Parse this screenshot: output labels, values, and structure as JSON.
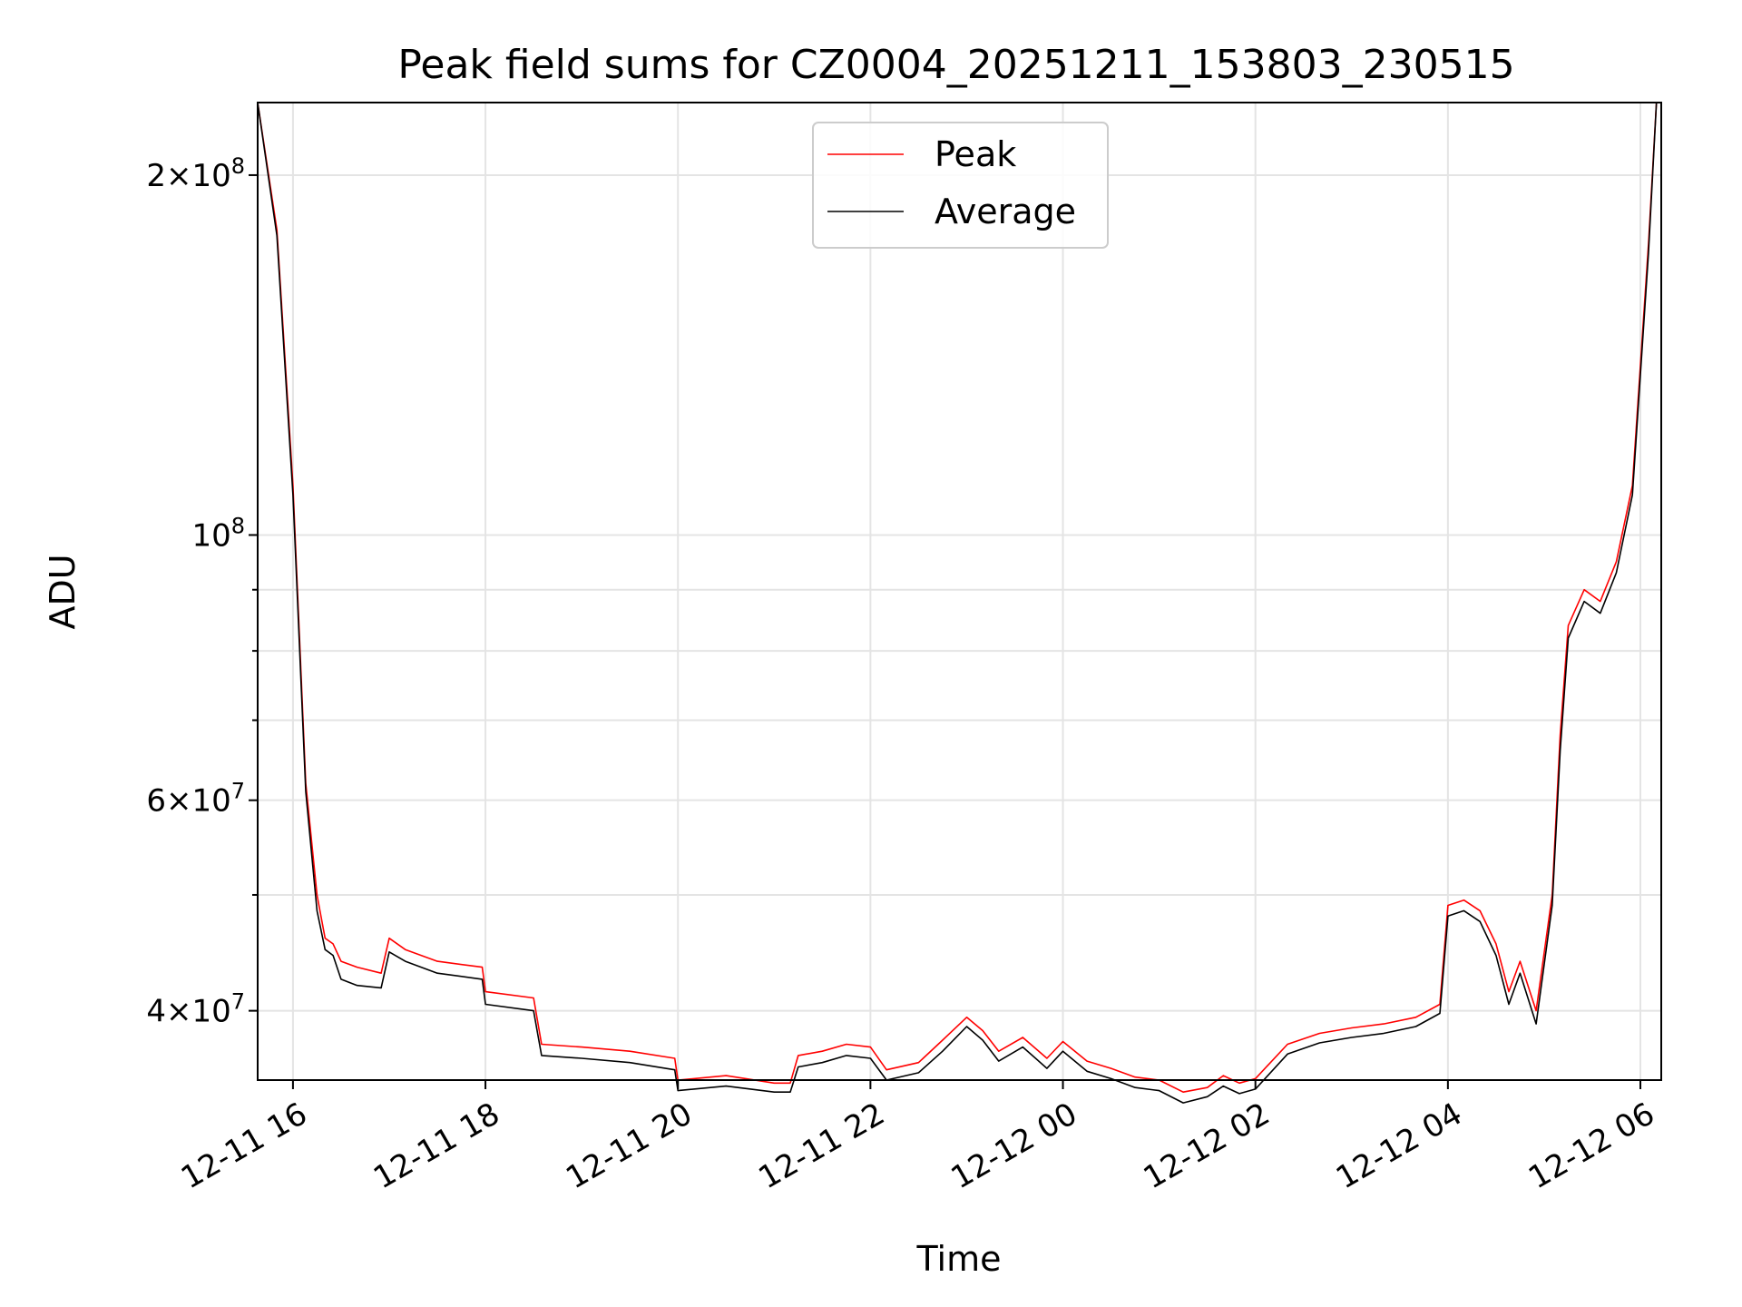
{
  "chart_data": {
    "type": "line",
    "title": "Peak field sums for CZ0004_20251211_153803_230515",
    "xlabel": "Time",
    "ylabel": "ADU",
    "xlim": [
      "2025-12-11T15:38",
      "2025-12-12T06:13"
    ],
    "ylim": [
      35000000,
      230000000
    ],
    "yscale": "log",
    "grid": true,
    "legend_position": "top-center",
    "x_ticks": [
      {
        "value": "2025-12-11T16:00",
        "label": "12-11 16"
      },
      {
        "value": "2025-12-11T18:00",
        "label": "12-11 18"
      },
      {
        "value": "2025-12-11T20:00",
        "label": "12-11 20"
      },
      {
        "value": "2025-12-11T22:00",
        "label": "12-11 22"
      },
      {
        "value": "2025-12-12T00:00",
        "label": "12-12 00"
      },
      {
        "value": "2025-12-12T02:00",
        "label": "12-12 02"
      },
      {
        "value": "2025-12-12T04:00",
        "label": "12-12 04"
      },
      {
        "value": "2025-12-12T06:00",
        "label": "12-12 06"
      }
    ],
    "y_ticks": [
      {
        "value": 200000000,
        "mant": "2",
        "exp": "8"
      },
      {
        "value": 100000000,
        "mant": "",
        "exp": "8"
      },
      {
        "value": 60000000,
        "mant": "6",
        "exp": "7"
      },
      {
        "value": 40000000,
        "mant": "4",
        "exp": "7"
      }
    ],
    "y_minor_ticks": [
      50000000,
      70000000,
      80000000,
      90000000,
      300000000
    ],
    "series": [
      {
        "name": "Peak",
        "color": "#ff0000",
        "x": [
          "2025-12-11T15:38",
          "2025-12-11T15:50",
          "2025-12-11T16:00",
          "2025-12-11T16:08",
          "2025-12-11T16:15",
          "2025-12-11T16:20",
          "2025-12-11T16:25",
          "2025-12-11T16:30",
          "2025-12-11T16:40",
          "2025-12-11T16:55",
          "2025-12-11T17:00",
          "2025-12-11T17:10",
          "2025-12-11T17:30",
          "2025-12-11T17:58",
          "2025-12-11T18:00",
          "2025-12-11T18:30",
          "2025-12-11T18:35",
          "2025-12-11T19:00",
          "2025-12-11T19:30",
          "2025-12-11T19:58",
          "2025-12-11T20:00",
          "2025-12-11T20:30",
          "2025-12-11T21:00",
          "2025-12-11T21:10",
          "2025-12-11T21:15",
          "2025-12-11T21:30",
          "2025-12-11T21:45",
          "2025-12-11T22:00",
          "2025-12-11T22:10",
          "2025-12-11T22:30",
          "2025-12-11T22:45",
          "2025-12-11T23:00",
          "2025-12-11T23:10",
          "2025-12-11T23:20",
          "2025-12-11T23:35",
          "2025-12-11T23:50",
          "2025-12-12T00:00",
          "2025-12-12T00:15",
          "2025-12-12T00:30",
          "2025-12-12T00:45",
          "2025-12-12T01:00",
          "2025-12-12T01:15",
          "2025-12-12T01:30",
          "2025-12-12T01:40",
          "2025-12-12T01:50",
          "2025-12-12T02:00",
          "2025-12-12T02:20",
          "2025-12-12T02:40",
          "2025-12-12T03:00",
          "2025-12-12T03:20",
          "2025-12-12T03:40",
          "2025-12-12T03:55",
          "2025-12-12T04:00",
          "2025-12-12T04:10",
          "2025-12-12T04:20",
          "2025-12-12T04:30",
          "2025-12-12T04:38",
          "2025-12-12T04:45",
          "2025-12-12T04:55",
          "2025-12-12T05:05",
          "2025-12-12T05:10",
          "2025-12-12T05:15",
          "2025-12-12T05:25",
          "2025-12-12T05:35",
          "2025-12-12T05:45",
          "2025-12-12T05:55",
          "2025-12-12T06:05",
          "2025-12-12T06:10"
        ],
        "values": [
          230000000,
          180000000,
          110000000,
          62000000,
          50000000,
          46000000,
          45500000,
          44000000,
          43500000,
          43000000,
          46000000,
          45000000,
          44000000,
          43500000,
          41500000,
          41000000,
          37500000,
          37300000,
          37000000,
          36500000,
          35000000,
          35300000,
          34800000,
          34800000,
          36700000,
          37000000,
          37500000,
          37300000,
          35700000,
          36200000,
          37800000,
          39500000,
          38500000,
          37000000,
          38000000,
          36500000,
          37700000,
          36300000,
          35800000,
          35200000,
          35000000,
          34200000,
          34500000,
          35300000,
          34800000,
          35100000,
          37500000,
          38300000,
          38700000,
          39000000,
          39500000,
          40500000,
          49000000,
          49500000,
          48500000,
          45500000,
          41500000,
          44000000,
          40000000,
          50000000,
          68000000,
          84000000,
          90000000,
          88000000,
          95000000,
          110000000,
          175000000,
          230000000
        ]
      },
      {
        "name": "Average",
        "color": "#000000",
        "x": [
          "2025-12-11T15:38",
          "2025-12-11T15:50",
          "2025-12-11T16:00",
          "2025-12-11T16:08",
          "2025-12-11T16:15",
          "2025-12-11T16:20",
          "2025-12-11T16:25",
          "2025-12-11T16:30",
          "2025-12-11T16:40",
          "2025-12-11T16:55",
          "2025-12-11T17:00",
          "2025-12-11T17:10",
          "2025-12-11T17:30",
          "2025-12-11T17:58",
          "2025-12-11T18:00",
          "2025-12-11T18:30",
          "2025-12-11T18:35",
          "2025-12-11T19:00",
          "2025-12-11T19:30",
          "2025-12-11T19:58",
          "2025-12-11T20:00",
          "2025-12-11T20:30",
          "2025-12-11T21:00",
          "2025-12-11T21:10",
          "2025-12-11T21:15",
          "2025-12-11T21:30",
          "2025-12-11T21:45",
          "2025-12-11T22:00",
          "2025-12-11T22:10",
          "2025-12-11T22:30",
          "2025-12-11T22:45",
          "2025-12-11T23:00",
          "2025-12-11T23:10",
          "2025-12-11T23:20",
          "2025-12-11T23:35",
          "2025-12-11T23:50",
          "2025-12-12T00:00",
          "2025-12-12T00:15",
          "2025-12-12T00:30",
          "2025-12-12T00:45",
          "2025-12-12T01:00",
          "2025-12-12T01:15",
          "2025-12-12T01:30",
          "2025-12-12T01:40",
          "2025-12-12T01:50",
          "2025-12-12T02:00",
          "2025-12-12T02:20",
          "2025-12-12T02:40",
          "2025-12-12T03:00",
          "2025-12-12T03:20",
          "2025-12-12T03:40",
          "2025-12-12T03:55",
          "2025-12-12T04:00",
          "2025-12-12T04:10",
          "2025-12-12T04:20",
          "2025-12-12T04:30",
          "2025-12-12T04:38",
          "2025-12-12T04:45",
          "2025-12-12T04:55",
          "2025-12-12T05:05",
          "2025-12-12T05:10",
          "2025-12-12T05:15",
          "2025-12-12T05:25",
          "2025-12-12T05:35",
          "2025-12-12T05:45",
          "2025-12-12T05:55",
          "2025-12-12T06:05",
          "2025-12-12T06:10"
        ],
        "values": [
          230000000,
          178000000,
          108000000,
          61000000,
          48500000,
          45000000,
          44500000,
          42500000,
          42000000,
          41800000,
          44800000,
          44000000,
          43000000,
          42500000,
          40500000,
          40000000,
          36700000,
          36500000,
          36200000,
          35700000,
          34300000,
          34600000,
          34200000,
          34200000,
          35900000,
          36200000,
          36700000,
          36500000,
          35000000,
          35500000,
          37000000,
          38800000,
          37800000,
          36300000,
          37300000,
          35800000,
          37000000,
          35600000,
          35100000,
          34500000,
          34300000,
          33500000,
          33900000,
          34600000,
          34100000,
          34400000,
          36800000,
          37600000,
          38000000,
          38300000,
          38800000,
          39800000,
          48000000,
          48500000,
          47500000,
          44500000,
          40500000,
          43000000,
          39000000,
          49000000,
          66000000,
          82000000,
          88000000,
          86000000,
          93000000,
          108000000,
          172000000,
          230000000
        ]
      }
    ]
  }
}
